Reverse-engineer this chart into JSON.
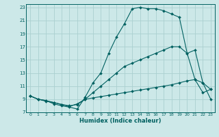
{
  "bg_color": "#cce8e8",
  "grid_color": "#aad0d0",
  "line_color": "#006060",
  "xlabel": "Humidex (Indice chaleur)",
  "xlim_min": -0.5,
  "xlim_max": 23.5,
  "ylim_min": 7,
  "ylim_max": 23.5,
  "xticks": [
    0,
    1,
    2,
    3,
    4,
    5,
    6,
    7,
    8,
    9,
    10,
    11,
    12,
    13,
    14,
    15,
    16,
    17,
    18,
    19,
    20,
    21,
    22,
    23
  ],
  "yticks": [
    7,
    9,
    11,
    13,
    15,
    17,
    19,
    21,
    23
  ],
  "series1_x": [
    0,
    1,
    2,
    3,
    4,
    5,
    6,
    7,
    8,
    9,
    10,
    11,
    12,
    13,
    14,
    15,
    16,
    17,
    18,
    19,
    20,
    21,
    22,
    23
  ],
  "series1_y": [
    9.5,
    9.0,
    8.8,
    8.3,
    8.0,
    7.8,
    7.5,
    9.3,
    11.5,
    13.0,
    16.0,
    18.5,
    20.5,
    22.8,
    23.0,
    22.8,
    22.8,
    22.5,
    22.0,
    21.5,
    16.0,
    12.0,
    11.5,
    10.5
  ],
  "series2_x": [
    0,
    1,
    2,
    3,
    4,
    5,
    6,
    7,
    8,
    9,
    10,
    11,
    12,
    13,
    14,
    15,
    16,
    17,
    18,
    19,
    20,
    21,
    22,
    23
  ],
  "series2_y": [
    9.5,
    9.0,
    8.7,
    8.5,
    8.2,
    8.0,
    8.2,
    9.0,
    10.0,
    11.0,
    12.0,
    13.0,
    14.0,
    14.5,
    15.0,
    15.5,
    16.0,
    16.5,
    17.0,
    17.0,
    16.0,
    16.5,
    11.5,
    9.0
  ],
  "series3_x": [
    0,
    1,
    2,
    3,
    4,
    5,
    6,
    7,
    8,
    9,
    10,
    11,
    12,
    13,
    14,
    15,
    16,
    17,
    18,
    19,
    20,
    21,
    22,
    23
  ],
  "series3_y": [
    9.5,
    9.0,
    8.8,
    8.5,
    8.2,
    7.9,
    8.3,
    9.0,
    9.2,
    9.4,
    9.6,
    9.8,
    10.0,
    10.2,
    10.4,
    10.6,
    10.8,
    11.0,
    11.2,
    11.5,
    11.8,
    12.0,
    10.0,
    10.5
  ]
}
